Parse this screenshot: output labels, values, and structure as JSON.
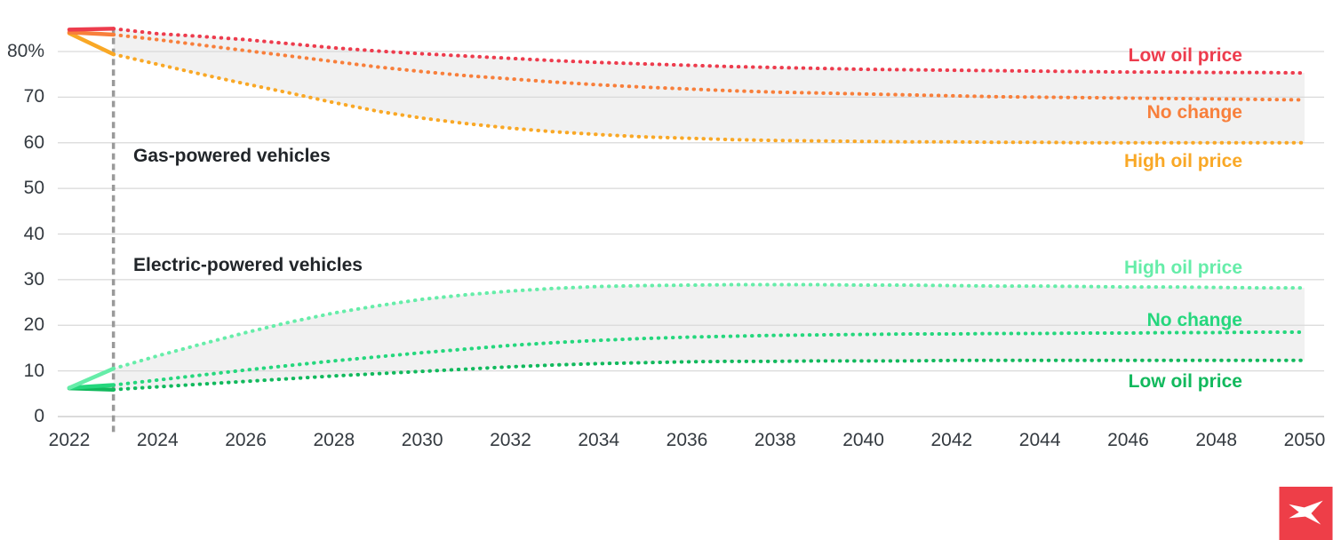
{
  "chart_data": {
    "type": "line",
    "title": "",
    "x": [
      2022,
      2023,
      2024,
      2025,
      2026,
      2027,
      2028,
      2029,
      2030,
      2031,
      2032,
      2033,
      2034,
      2035,
      2036,
      2037,
      2038,
      2039,
      2040,
      2041,
      2042,
      2043,
      2044,
      2045,
      2046,
      2047,
      2048,
      2049,
      2050
    ],
    "x_tick_labels": [
      "2022",
      "2024",
      "2026",
      "2028",
      "2030",
      "2032",
      "2034",
      "2036",
      "2038",
      "2040",
      "2042",
      "2044",
      "2046",
      "2048",
      "2050"
    ],
    "y_tick_labels": [
      "0",
      "10",
      "20",
      "30",
      "40",
      "50",
      "60",
      "70",
      "80%"
    ],
    "ylim": [
      0,
      87
    ],
    "xlim": [
      2022,
      2050
    ],
    "grid": "horizontal",
    "legend": "inline-right-labels",
    "unit": "%",
    "divider": {
      "year": 2023,
      "style": "dashed",
      "color": "#9A9A9A"
    },
    "band_color": "#F1F1F1",
    "bands": [
      {
        "top": 0,
        "bottom": 2
      },
      {
        "top": 3,
        "bottom": 5
      }
    ],
    "groups": [
      {
        "label": "Gas-powered vehicles"
      },
      {
        "label": "Electric-powered vehicles"
      }
    ],
    "series": [
      {
        "group": "Gas-powered vehicles",
        "name": "gas-low-oil-price",
        "label": "Low oil price",
        "color": "#ED3C4D",
        "values": [
          84.8,
          85.0,
          83.9,
          83.3,
          82.6,
          81.7,
          80.8,
          80.1,
          79.5,
          79.0,
          78.5,
          78.0,
          77.6,
          77.3,
          77.0,
          76.7,
          76.5,
          76.3,
          76.1,
          76.0,
          75.9,
          75.8,
          75.7,
          75.6,
          75.5,
          75.5,
          75.4,
          75.4,
          75.3
        ]
      },
      {
        "group": "Gas-powered vehicles",
        "name": "gas-no-change",
        "label": "No change",
        "color": "#F87F3B",
        "values": [
          84.2,
          83.7,
          82.6,
          81.4,
          80.2,
          79.0,
          77.8,
          76.6,
          75.6,
          74.7,
          74.0,
          73.3,
          72.7,
          72.2,
          71.8,
          71.4,
          71.1,
          70.9,
          70.7,
          70.5,
          70.3,
          70.1,
          70.0,
          69.9,
          69.8,
          69.7,
          69.6,
          69.5,
          69.4
        ]
      },
      {
        "group": "Gas-powered vehicles",
        "name": "gas-high-oil-price",
        "label": "High oil price",
        "color": "#F9A826",
        "values": [
          84.0,
          79.4,
          77.2,
          75.0,
          72.9,
          70.9,
          68.8,
          66.9,
          65.4,
          64.2,
          63.2,
          62.4,
          61.8,
          61.3,
          61.0,
          60.7,
          60.5,
          60.4,
          60.3,
          60.2,
          60.2,
          60.1,
          60.1,
          60.0,
          60.0,
          60.0,
          60.0,
          60.0,
          60.0
        ]
      },
      {
        "group": "Electric-powered vehicles",
        "name": "electric-high-oil-price",
        "label": "High oil price",
        "color": "#66EDA9",
        "values": [
          6.3,
          10.5,
          13.3,
          15.9,
          18.4,
          20.7,
          22.7,
          24.3,
          25.7,
          26.7,
          27.5,
          28.1,
          28.5,
          28.7,
          28.8,
          28.9,
          28.9,
          28.9,
          28.8,
          28.8,
          28.7,
          28.6,
          28.6,
          28.5,
          28.4,
          28.4,
          28.3,
          28.2,
          28.2
        ]
      },
      {
        "group": "Electric-powered vehicles",
        "name": "electric-no-change",
        "label": "No change",
        "color": "#25D77D",
        "values": [
          6.3,
          6.9,
          8.0,
          9.1,
          10.2,
          11.2,
          12.2,
          13.1,
          14.0,
          14.8,
          15.6,
          16.2,
          16.7,
          17.1,
          17.4,
          17.6,
          17.8,
          17.9,
          18.0,
          18.1,
          18.1,
          18.2,
          18.2,
          18.3,
          18.3,
          18.4,
          18.4,
          18.5,
          18.5
        ]
      },
      {
        "group": "Electric-powered vehicles",
        "name": "electric-low-oil-price",
        "label": "Low oil price",
        "color": "#12B95D",
        "values": [
          6.2,
          5.9,
          6.5,
          7.1,
          7.7,
          8.3,
          8.9,
          9.4,
          9.9,
          10.4,
          10.9,
          11.3,
          11.6,
          11.8,
          12.0,
          12.1,
          12.1,
          12.2,
          12.2,
          12.2,
          12.3,
          12.3,
          12.3,
          12.3,
          12.3,
          12.3,
          12.3,
          12.3,
          12.3
        ]
      }
    ],
    "style_notes": {
      "history_segment": "solid 2022-2023",
      "projection_segment": "dotted 2023-2050",
      "gridline_color": "#D9D9D9",
      "zero_line_color": "#C5C5C5"
    }
  },
  "branding": {
    "logo_name": "xtb-logo",
    "logo_color": "#EE3E48"
  }
}
